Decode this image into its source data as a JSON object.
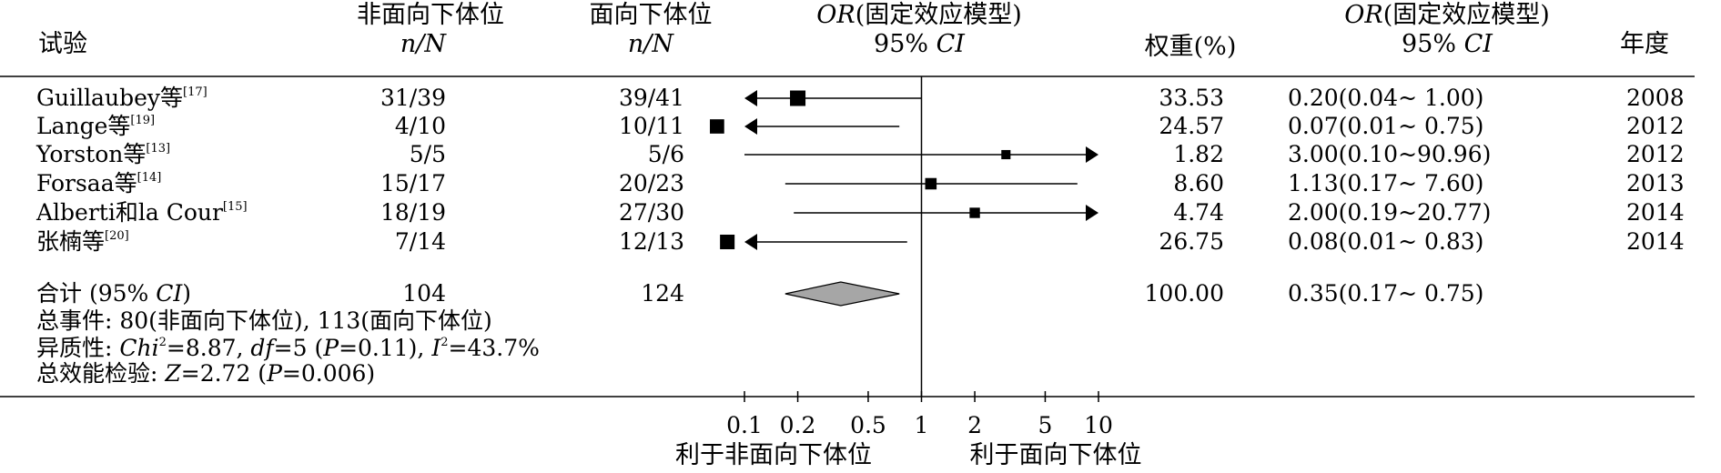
{
  "headers": {
    "study": "试验",
    "group1": "非面向下体位",
    "group1_unit": "n/N",
    "group2": "面向下体位",
    "group2_unit": "n/N",
    "or_italic": "OR",
    "or_text": "(固定效应模型)",
    "ci_text": "95% ",
    "ci_italic": "CI",
    "weight": "权重(%)",
    "or2_italic": "OR",
    "or2_text": "(固定效应模型)",
    "ci2_text": "95% ",
    "ci2_italic": "CI",
    "year": "年度"
  },
  "rows": [
    {
      "name": "Guillaubey等",
      "ref": "[17]",
      "g1": "31/39",
      "g2": "39/41",
      "weight": "33.53",
      "or_ci": "0.20(0.04~ 1.00)",
      "year": "2008"
    },
    {
      "name": "Lange等",
      "ref": "[19]",
      "g1": "4/10",
      "g2": "10/11",
      "weight": "24.57",
      "or_ci": "0.07(0.01~ 0.75)",
      "year": "2012"
    },
    {
      "name": "Yorston等",
      "ref": "[13]",
      "g1": "5/5",
      "g2": "5/6",
      "weight": "1.82",
      "or_ci": "3.00(0.10~90.96)",
      "year": "2012"
    },
    {
      "name": "Forsaa等",
      "ref": "[14]",
      "g1": "15/17",
      "g2": "20/23",
      "weight": "8.60",
      "or_ci": "1.13(0.17~ 7.60)",
      "year": "2013"
    },
    {
      "name": "Alberti和la Cour",
      "ref": "[15]",
      "g1": "18/19",
      "g2": "27/30",
      "weight": "4.74",
      "or_ci": "2.00(0.19~20.77)",
      "year": "2014"
    },
    {
      "name": "张楠等",
      "ref": "[20]",
      "g1": "7/14",
      "g2": "12/13",
      "weight": "26.75",
      "or_ci": "0.08(0.01~ 0.83)",
      "year": "2014"
    }
  ],
  "total": {
    "label_a": "合计 (95% ",
    "label_ci": "CI",
    "label_b": ")",
    "g1": "104",
    "g2": "124",
    "weight": "100.00",
    "or_ci": "0.35(0.17~ 0.75)"
  },
  "stats": {
    "events": "总事件: 80(非面向下体位), 113(面向下体位)",
    "het_label": "异质性: ",
    "het_chi": "Chi",
    "het_chi_sup": "2",
    "het_chi_val": "=8.87, ",
    "het_df": "df",
    "het_df_val": "=5 (",
    "het_p": "P",
    "het_p_val": "=0.11), ",
    "het_i": "I",
    "het_i_sup": "2",
    "het_i_val": "=43.7%",
    "eff_label": "总效能检验: ",
    "eff_z": "Z",
    "eff_z_val": "=2.72 (",
    "eff_p": "P",
    "eff_p_val": "=0.006)"
  },
  "axis": {
    "tick_labels": [
      "0.1",
      "0.2",
      "0.5",
      "1",
      "2",
      "5",
      "10"
    ],
    "left_label": "利于非面向下体位",
    "right_label": "利于面向下体位"
  },
  "chart_data": {
    "type": "forest",
    "x_scale": "log",
    "xlim": [
      0.1,
      10
    ],
    "x_ticks": [
      0.1,
      0.2,
      0.5,
      1,
      2,
      5,
      10
    ],
    "reference_line": 1,
    "studies": [
      {
        "name": "Guillaubey等",
        "or": 0.2,
        "lower": 0.04,
        "upper": 1.0,
        "weight": 33.53
      },
      {
        "name": "Lange等",
        "or": 0.07,
        "lower": 0.01,
        "upper": 0.75,
        "weight": 24.57
      },
      {
        "name": "Yorston等",
        "or": 3.0,
        "lower": 0.1,
        "upper": 90.96,
        "weight": 1.82
      },
      {
        "name": "Forsaa等",
        "or": 1.13,
        "lower": 0.17,
        "upper": 7.6,
        "weight": 8.6
      },
      {
        "name": "Alberti和la Cour",
        "or": 2.0,
        "lower": 0.19,
        "upper": 20.77,
        "weight": 4.74
      },
      {
        "name": "张楠等",
        "or": 0.08,
        "lower": 0.01,
        "upper": 0.83,
        "weight": 26.75
      }
    ],
    "pooled": {
      "or": 0.35,
      "lower": 0.17,
      "upper": 0.75
    },
    "diamond_color": "#a6a6a6"
  }
}
